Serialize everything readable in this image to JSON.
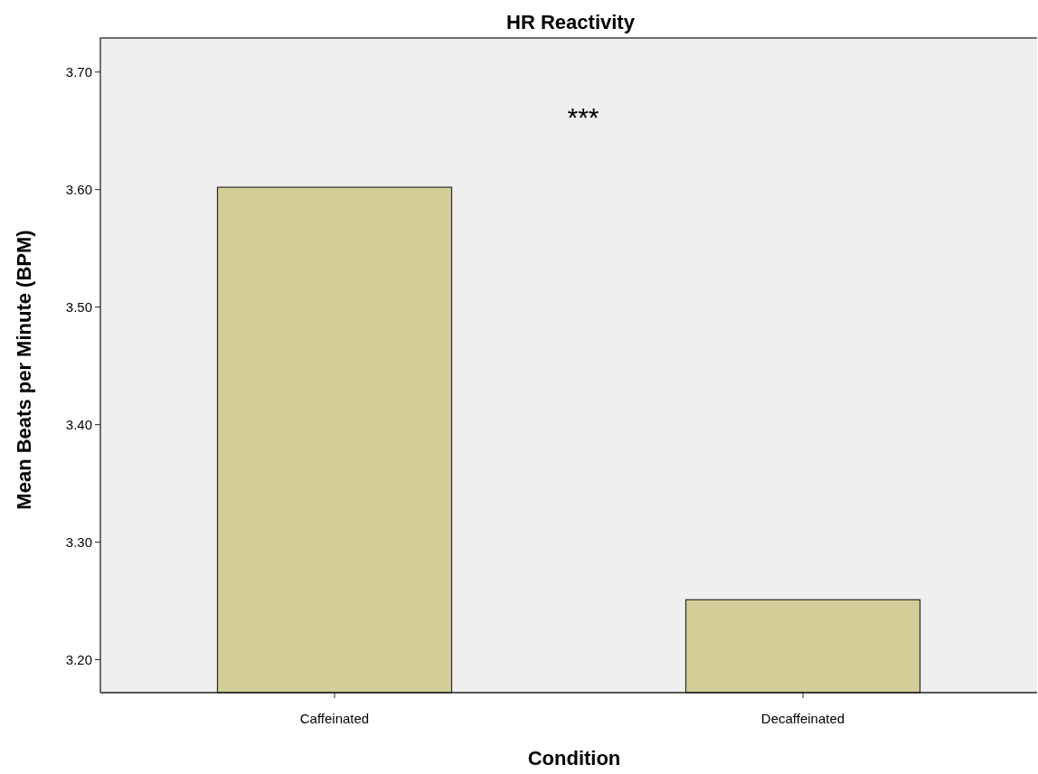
{
  "chart_data": {
    "type": "bar",
    "title": "HR Reactivity",
    "xlabel": "Condition",
    "ylabel": "Mean Beats per Minute (BPM)",
    "categories": [
      "Caffeinated",
      "Decaffeinated"
    ],
    "values": [
      3.602,
      3.251
    ],
    "color": "#d3ce97",
    "ylim": [
      3.172,
      3.729
    ],
    "yticks": [
      {
        "value": 3.2,
        "label": "3.20"
      },
      {
        "value": 3.3,
        "label": "3.30"
      },
      {
        "value": 3.4,
        "label": "3.40"
      },
      {
        "value": 3.5,
        "label": "3.50"
      },
      {
        "value": 3.6,
        "label": "3.60"
      },
      {
        "value": 3.7,
        "label": "3.70"
      }
    ],
    "grid": false,
    "annotations": [
      "***"
    ]
  }
}
